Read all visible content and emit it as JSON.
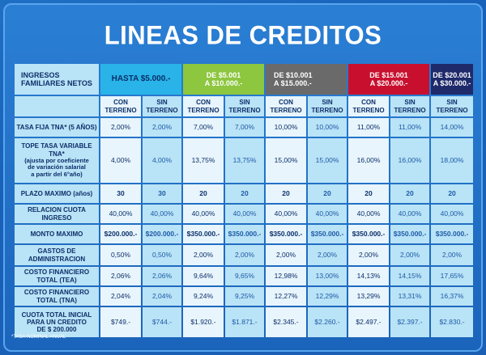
{
  "title": "LINEAS DE CREDITOS",
  "header": {
    "label_line1": "INGRESOS",
    "label_line2": "FAMILIARES NETOS",
    "ranges": [
      {
        "line1": "HASTA $5.000.-",
        "line2": ""
      },
      {
        "line1": "DE $5.001",
        "line2": "A $10.000.-"
      },
      {
        "line1": "DE $10.001",
        "line2": "A $15.000.-"
      },
      {
        "line1": "DE $15.001",
        "line2": "A $20.000.-"
      },
      {
        "line1": "DE $20.001",
        "line2": "A $30.000.-"
      }
    ]
  },
  "subheader": {
    "con_line1": "CON",
    "con_line2": "TERRENO",
    "sin_line1": "SIN",
    "sin_line2": "TERRENO"
  },
  "rows": [
    {
      "label": [
        "TASA FIJA TNA* (5 AÑOS)"
      ],
      "values": [
        "2,00%",
        "2,00%",
        "7,00%",
        "7,00%",
        "10,00%",
        "10,00%",
        "11,00%",
        "11,00%",
        "14,00%"
      ]
    },
    {
      "label": [
        "TOPE TASA VARIABLE TNA*",
        "(ajusta por coeficiente",
        "de variación salarial",
        "a partir del 6°año)"
      ],
      "values": [
        "4,00%",
        "4,00%",
        "13,75%",
        "13,75%",
        "15,00%",
        "15,00%",
        "16,00%",
        "16,00%",
        "18,00%"
      ]
    },
    {
      "label": [
        "PLAZO MAXIMO (años)"
      ],
      "values": [
        "30",
        "30",
        "20",
        "20",
        "20",
        "20",
        "20",
        "20",
        "20"
      ]
    },
    {
      "label": [
        "RELACION CUOTA INGRESO"
      ],
      "values": [
        "40,00%",
        "40,00%",
        "40,00%",
        "40,00%",
        "40,00%",
        "40,00%",
        "40,00%",
        "40,00%",
        "40,00%"
      ]
    },
    {
      "label": [
        "MONTO MAXIMO"
      ],
      "values": [
        "$200.000.-",
        "$200.000.-",
        "$350.000.-",
        "$350.000.-",
        "$350.000.-",
        "$350.000.-",
        "$350.000.-",
        "$350.000.-",
        "$350.000.-"
      ]
    },
    {
      "label": [
        "GASTOS DE",
        "ADMINISTRACION"
      ],
      "values": [
        "0,50%",
        "0,50%",
        "2,00%",
        "2,00%",
        "2,00%",
        "2,00%",
        "2,00%",
        "2,00%",
        "2,00%"
      ]
    },
    {
      "label": [
        "COSTO FINANCIERO",
        "TOTAL (TEA)"
      ],
      "values": [
        "2,06%",
        "2,06%",
        "9,64%",
        "9,65%",
        "12,98%",
        "13,00%",
        "14,13%",
        "14,15%",
        "17,65%"
      ]
    },
    {
      "label": [
        "COSTO FINANCIERO",
        "TOTAL (TNA)"
      ],
      "values": [
        "2,04%",
        "2,04%",
        "9,24%",
        "9,25%",
        "12,27%",
        "12,29%",
        "13,29%",
        "13,31%",
        "16,37%"
      ]
    },
    {
      "label": [
        "CUOTA TOTAL INICIAL",
        "PARA UN CREDITO",
        "DE $ 200.000"
      ],
      "values": [
        "$749.-",
        "$744.-",
        "$1.920.-",
        "$1.871.-",
        "$2.345.-",
        "$2.260.-",
        "$2.497.-",
        "$2.397.-",
        "$2.830.-"
      ]
    }
  ],
  "footnote": "*TASA NOMINAL ANUAL"
}
